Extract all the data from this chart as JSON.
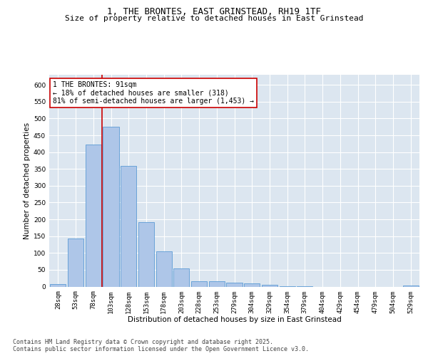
{
  "title_line1": "1, THE BRONTES, EAST GRINSTEAD, RH19 1TF",
  "title_line2": "Size of property relative to detached houses in East Grinstead",
  "xlabel": "Distribution of detached houses by size in East Grinstead",
  "ylabel": "Number of detached properties",
  "categories": [
    "28sqm",
    "53sqm",
    "78sqm",
    "103sqm",
    "128sqm",
    "153sqm",
    "178sqm",
    "203sqm",
    "228sqm",
    "253sqm",
    "279sqm",
    "304sqm",
    "329sqm",
    "354sqm",
    "379sqm",
    "404sqm",
    "429sqm",
    "454sqm",
    "479sqm",
    "504sqm",
    "529sqm"
  ],
  "values": [
    8,
    143,
    423,
    475,
    360,
    192,
    105,
    55,
    16,
    15,
    12,
    9,
    5,
    2,
    1,
    0,
    0,
    0,
    0,
    0,
    3
  ],
  "bar_color": "#aec6e8",
  "bar_edge_color": "#5b9bd5",
  "vline_color": "#cc0000",
  "annotation_text": "1 THE BRONTES: 91sqm\n← 18% of detached houses are smaller (318)\n81% of semi-detached houses are larger (1,453) →",
  "annotation_box_color": "#ffffff",
  "annotation_box_edge_color": "#cc0000",
  "ylim": [
    0,
    630
  ],
  "yticks": [
    0,
    50,
    100,
    150,
    200,
    250,
    300,
    350,
    400,
    450,
    500,
    550,
    600
  ],
  "background_color": "#dce6f0",
  "footer_text": "Contains HM Land Registry data © Crown copyright and database right 2025.\nContains public sector information licensed under the Open Government Licence v3.0.",
  "title_fontsize": 9,
  "subtitle_fontsize": 8,
  "axis_label_fontsize": 7.5,
  "tick_fontsize": 6.5,
  "annotation_fontsize": 7,
  "footer_fontsize": 6
}
